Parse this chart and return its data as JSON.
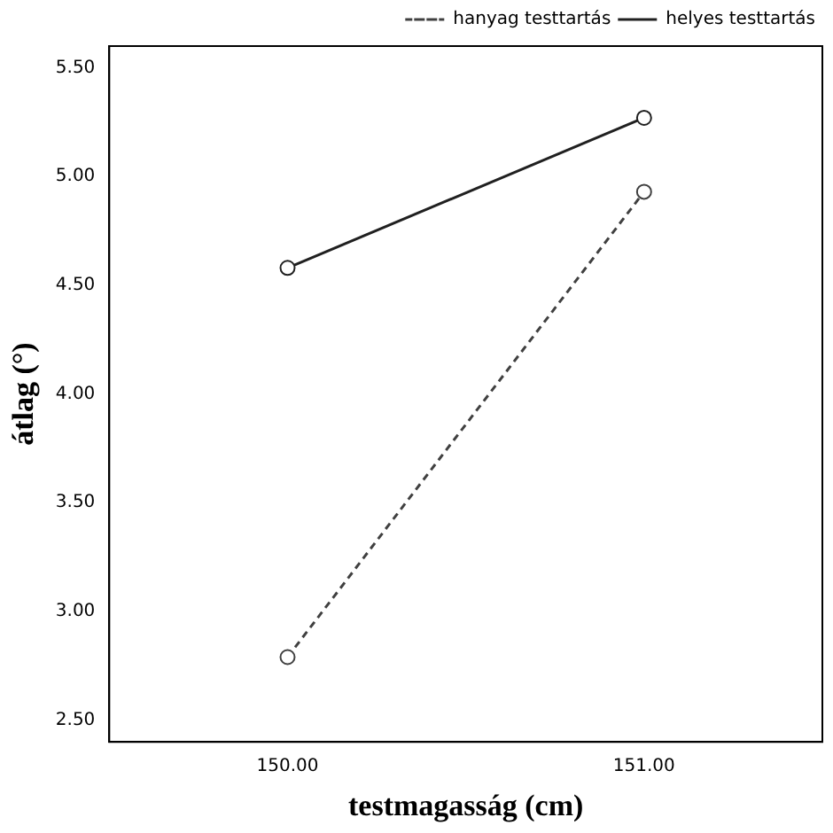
{
  "chart_data": {
    "type": "line",
    "xlabel": "testmagasság (cm)",
    "ylabel": "átlag (°)",
    "categories": [
      "150.00",
      "151.00"
    ],
    "series": [
      {
        "name": "hanyag testtartás",
        "color": "#404040",
        "values": [
          2.79,
          4.93
        ],
        "line_style": "dashed"
      },
      {
        "name": "helyes testtartás",
        "color": "#202020",
        "values": [
          4.58,
          5.27
        ],
        "line_style": "solid"
      }
    ],
    "ylim": [
      2.4,
      5.6
    ],
    "yticks": [
      {
        "value": 2.5,
        "label": "2.50"
      },
      {
        "value": 3,
        "label": "3.00"
      },
      {
        "value": 3.5,
        "label": "3.50"
      },
      {
        "value": 4,
        "label": "4.00"
      },
      {
        "value": 4.5,
        "label": "4.50"
      },
      {
        "value": 5,
        "label": "5.00"
      },
      {
        "value": 5.5,
        "label": "5.50"
      }
    ],
    "grid": false,
    "legend": "top right",
    "marker": "circle"
  }
}
